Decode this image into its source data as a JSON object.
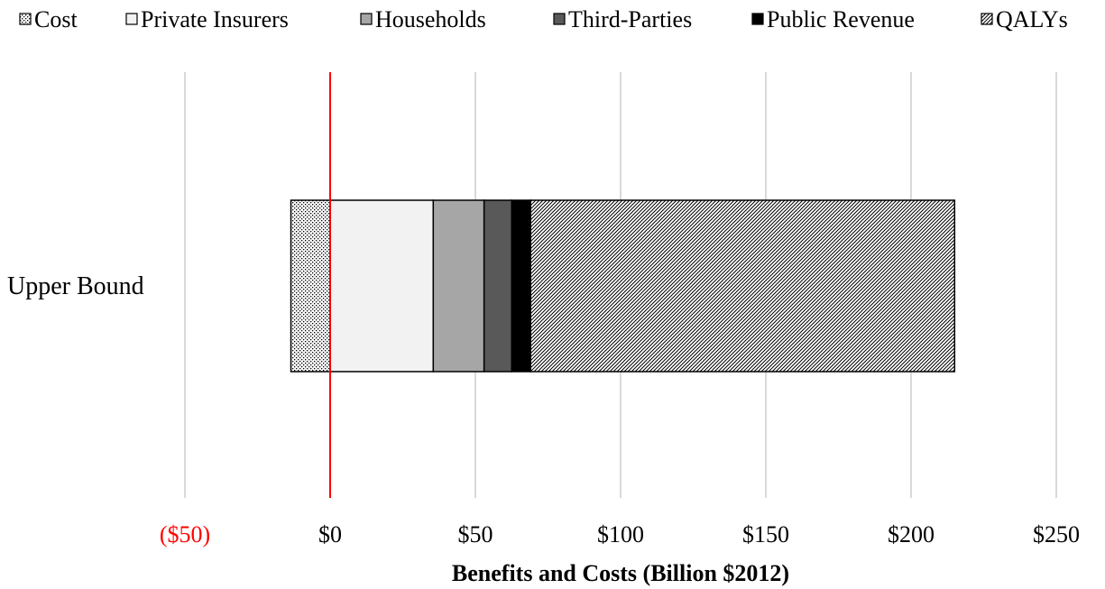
{
  "chart_data": {
    "type": "bar",
    "orientation": "horizontal",
    "stacked": true,
    "categories": [
      "Upper Bound"
    ],
    "xlabel": "Benefits and Costs (Billion $2012)",
    "x_ticks": [
      "($50)",
      "$0",
      "$50",
      "$100",
      "$150",
      "$200",
      "$250"
    ],
    "x_tick_values": [
      -50,
      0,
      50,
      100,
      150,
      200,
      250
    ],
    "xlim": [
      -50,
      250
    ],
    "grid": true,
    "legend_position": "top",
    "zero_line_color": "#ff0000",
    "negative_tick_color": "#ff0000",
    "series": [
      {
        "name": "Cost",
        "values": [
          -13.5
        ],
        "pattern": "dots",
        "color": "#ffffff"
      },
      {
        "name": "Private Insurers",
        "values": [
          35.5
        ],
        "pattern": "solid",
        "color": "#f2f2f2"
      },
      {
        "name": "Households",
        "values": [
          17.5
        ],
        "pattern": "solid",
        "color": "#a6a6a6"
      },
      {
        "name": "Third-Parties",
        "values": [
          9.5
        ],
        "pattern": "solid",
        "color": "#595959"
      },
      {
        "name": "Public Revenue",
        "values": [
          6.5
        ],
        "pattern": "solid",
        "color": "#000000"
      },
      {
        "name": "QALYs",
        "values": [
          146
        ],
        "pattern": "diagonal-stripes",
        "color": "#ffffff"
      }
    ]
  }
}
